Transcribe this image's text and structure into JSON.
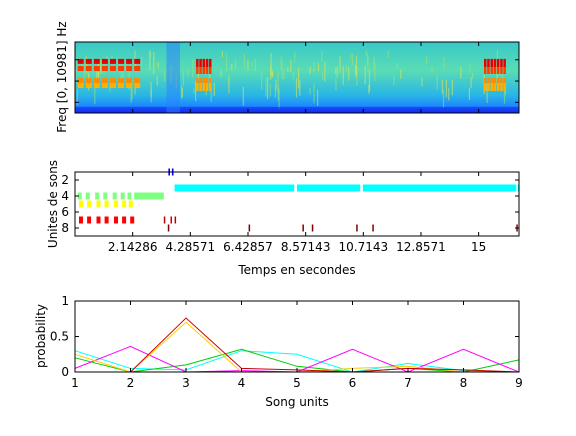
{
  "chart_data": [
    {
      "type": "heatmap",
      "title": "",
      "ylabel": "Freq [0, 10981] Hz",
      "xlim": [
        0,
        16.5
      ],
      "description_series": [
        {
          "name": "",
          "band": "low",
          "segments": [
            [
              0,
              2.2
            ],
            [
              3.5,
              16.5
            ]
          ]
        }
      ],
      "colormap": "jet",
      "tone_bursts": [
        {
          "t_start": 0.1,
          "t_end": 2.3,
          "intensity": "high",
          "band": "mid"
        },
        {
          "t_start": 4.5,
          "t_end": 5.0,
          "intensity": "high",
          "band": "mid"
        },
        {
          "t_start": 15.2,
          "t_end": 16.0,
          "intensity": "high",
          "band": "mid"
        }
      ]
    },
    {
      "type": "scatter",
      "xlabel": "Temps en secondes",
      "ylabel": "Unites de sons",
      "xtick_labels": [
        "2.14286",
        "4.28571",
        "6.42857",
        "8.57143",
        "10.7143",
        "12.8571",
        "15"
      ],
      "xticks": [
        2.14286,
        4.28571,
        6.42857,
        8.57143,
        10.7143,
        12.8571,
        15
      ],
      "ytick_labels": [
        "2",
        "4",
        "6",
        "8"
      ],
      "yticks": [
        2,
        4,
        6,
        8
      ],
      "xlim": [
        0,
        16.5
      ],
      "ylim": [
        1,
        9
      ],
      "series": [
        {
          "unit": 1,
          "color": "#0000ff",
          "segments": [
            [
              3.47,
              3.53
            ],
            [
              3.6,
              3.66
            ]
          ]
        },
        {
          "unit": 3,
          "color": "#00ffff",
          "segments": [
            [
              3.7,
              8.15
            ],
            [
              8.25,
              10.6
            ],
            [
              10.7,
              16.4
            ],
            [
              16.45,
              16.5
            ]
          ]
        },
        {
          "unit": 4,
          "color": "#7fff7f",
          "segments": [
            [
              0.1,
              0.25
            ],
            [
              0.4,
              0.55
            ],
            [
              0.75,
              0.9
            ],
            [
              1.05,
              1.2
            ],
            [
              1.4,
              1.55
            ],
            [
              1.7,
              1.85
            ],
            [
              1.95,
              2.1
            ],
            [
              2.2,
              3.3
            ]
          ]
        },
        {
          "unit": 5,
          "color": "#ffff00",
          "segments": [
            [
              0.15,
              0.3
            ],
            [
              0.45,
              0.6
            ],
            [
              0.8,
              0.95
            ],
            [
              1.1,
              1.25
            ],
            [
              1.45,
              1.6
            ],
            [
              1.75,
              1.9
            ],
            [
              2.0,
              2.15
            ]
          ]
        },
        {
          "unit": 7,
          "color": "#ff0000",
          "segments": [
            [
              0.15,
              0.3
            ],
            [
              0.45,
              0.6
            ],
            [
              0.8,
              0.95
            ],
            [
              1.1,
              1.25
            ],
            [
              1.45,
              1.6
            ],
            [
              1.75,
              1.9
            ],
            [
              2.05,
              2.2
            ]
          ]
        },
        {
          "unit": 7,
          "color": "#c00000",
          "segments": [
            [
              3.3,
              3.35
            ],
            [
              3.55,
              3.6
            ],
            [
              3.7,
              3.75
            ]
          ]
        },
        {
          "unit": 8,
          "color": "#800000",
          "segments": [
            [
              3.45,
              3.5
            ],
            [
              6.45,
              6.5
            ],
            [
              8.45,
              8.5
            ],
            [
              8.8,
              8.85
            ],
            [
              10.45,
              10.5
            ],
            [
              11.05,
              11.1
            ],
            [
              16.4,
              16.45
            ]
          ]
        }
      ]
    },
    {
      "type": "line",
      "xlabel": "Song units",
      "ylabel": "probability",
      "x": [
        1,
        2,
        3,
        4,
        5,
        6,
        7,
        8,
        9
      ],
      "xlim": [
        1,
        9
      ],
      "ylim": [
        0,
        1
      ],
      "ytick_labels": [
        "0",
        "0.5",
        "1"
      ],
      "yticks": [
        0,
        0.5,
        1
      ],
      "series": [
        {
          "color": "#00ffff",
          "values": [
            0.3,
            0.05,
            0.03,
            0.3,
            0.25,
            0.0,
            0.12,
            0.02,
            0.0
          ]
        },
        {
          "color": "#00cc00",
          "values": [
            0.2,
            0.0,
            0.1,
            0.32,
            0.08,
            0.0,
            0.05,
            0.0,
            0.17
          ]
        },
        {
          "color": "#ff00ff",
          "values": [
            0.05,
            0.36,
            0.0,
            0.02,
            0.0,
            0.32,
            0.0,
            0.32,
            0.0
          ]
        },
        {
          "color": "#ffcc00",
          "values": [
            0.25,
            0.0,
            0.7,
            0.0,
            0.0,
            0.05,
            0.08,
            0.0,
            0.0
          ]
        },
        {
          "color": "#cc0000",
          "values": [
            0.0,
            0.0,
            0.76,
            0.05,
            0.03,
            0.0,
            0.05,
            0.03,
            0.0
          ]
        },
        {
          "color": "#6a5acd",
          "values": [
            0.0,
            0.0,
            0.0,
            0.0,
            0.0,
            0.0,
            0.0,
            0.0,
            0.0
          ]
        },
        {
          "color": "#7f7fff",
          "values": [
            0.0,
            0.0,
            0.0,
            0.0,
            0.0,
            0.0,
            0.0,
            0.0,
            0.0
          ]
        }
      ]
    }
  ],
  "spectrogram": {
    "ylabel": "Freq [0, 10981] Hz"
  },
  "units_chart": {
    "xlabel": "Temps en secondes",
    "ylabel": "Unites de sons",
    "xtick_labels": [
      "2.14286",
      "4.28571",
      "6.42857",
      "8.57143",
      "10.7143",
      "12.8571",
      "15"
    ],
    "ytick_labels": [
      "2",
      "4",
      "6",
      "8"
    ]
  },
  "prob_chart": {
    "xlabel": "Song units",
    "ylabel": "probability",
    "xtick_labels": [
      "1",
      "2",
      "3",
      "4",
      "5",
      "6",
      "7",
      "8",
      "9"
    ],
    "ytick_labels": [
      "0",
      "0.5",
      "1"
    ]
  }
}
